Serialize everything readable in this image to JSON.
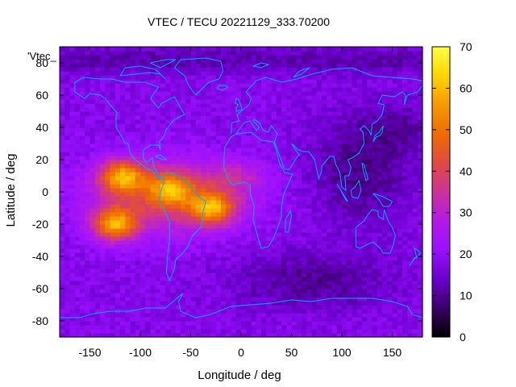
{
  "chart_data": {
    "type": "heatmap",
    "title": "VTEC / TECU 20221129_333.70200",
    "xlabel": "Longitude / deg",
    "ylabel": "Latitude / deg",
    "legend_label": "'Vtec_",
    "xlim": [
      -180,
      180
    ],
    "ylim": [
      -90,
      90
    ],
    "x_ticks": [
      "-150",
      "-100",
      "-50",
      "0",
      "50",
      "100",
      "150"
    ],
    "y_ticks": [
      "80",
      "60",
      "40",
      "20",
      "0",
      "-20",
      "-40",
      "-60",
      "-80"
    ],
    "x_tick_values": [
      -150,
      -100,
      -50,
      0,
      50,
      100,
      150
    ],
    "y_tick_values": [
      80,
      60,
      40,
      20,
      0,
      -20,
      -40,
      -60,
      -80
    ],
    "colorbar": {
      "range": [
        0,
        70
      ],
      "ticks": [
        "0",
        "10",
        "20",
        "30",
        "40",
        "50",
        "60",
        "70"
      ],
      "tick_values": [
        0,
        10,
        20,
        30,
        40,
        50,
        60,
        70
      ],
      "palette": [
        "#000000",
        "#3a0066",
        "#6a00cc",
        "#9a10ff",
        "#b31ae6",
        "#cc3399",
        "#e04a44",
        "#f06b00",
        "#f59a00",
        "#ffd400",
        "#ffff44"
      ]
    },
    "grid_resolution_deg": {
      "lon": 5,
      "lat": 2.5
    },
    "peaks": [
      {
        "lon": -125,
        "lat": -20,
        "value": 62
      },
      {
        "lon": -118,
        "lat": 10,
        "value": 60
      },
      {
        "lon": -28,
        "lat": -10,
        "value": 58
      },
      {
        "lon": -70,
        "lat": 2,
        "value": 52
      }
    ],
    "background_level": 18,
    "coastline_color": "#00aaff"
  }
}
